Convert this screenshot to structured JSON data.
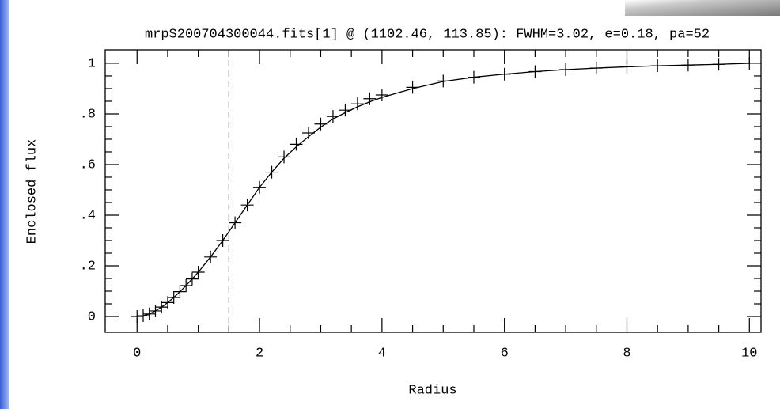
{
  "chart_data": {
    "type": "line",
    "title": "mrpS200704300044.fits[1] @ (1102.46, 113.85): FWHM=3.02, e=0.18, pa=52",
    "xlabel": "Radius",
    "ylabel": "Enclosed flux",
    "x": [
      0,
      0.1,
      0.2,
      0.3,
      0.4,
      0.5,
      0.6,
      0.7,
      0.8,
      0.9,
      1.0,
      1.2,
      1.4,
      1.6,
      1.8,
      2.0,
      2.2,
      2.4,
      2.6,
      2.8,
      3.0,
      3.2,
      3.4,
      3.6,
      3.8,
      4.0,
      4.5,
      5.0,
      5.5,
      6.0,
      6.5,
      7.0,
      7.5,
      8.0,
      8.5,
      9.0,
      9.5,
      10
    ],
    "series": [
      {
        "color": "#000000",
        "marker": "+",
        "values": [
          0,
          0.003,
          0.01,
          0.022,
          0.037,
          0.055,
          0.075,
          0.098,
          0.122,
          0.148,
          0.175,
          0.235,
          0.3,
          0.37,
          0.44,
          0.51,
          0.57,
          0.63,
          0.68,
          0.725,
          0.76,
          0.79,
          0.815,
          0.84,
          0.86,
          0.875,
          0.905,
          0.93,
          0.945,
          0.957,
          0.967,
          0.975,
          0.981,
          0.986,
          0.99,
          0.993,
          0.996,
          1.0
        ]
      },
      {
        "color": "#000000",
        "values": [
          0,
          0.003,
          0.01,
          0.022,
          0.037,
          0.055,
          0.075,
          0.098,
          0.122,
          0.148,
          0.175,
          0.235,
          0.3,
          0.37,
          0.44,
          0.51,
          0.57,
          0.625,
          0.67,
          0.71,
          0.748,
          0.78,
          0.805,
          0.828,
          0.848,
          0.865,
          0.9,
          0.928,
          0.945,
          0.957,
          0.967,
          0.975,
          0.981,
          0.986,
          0.99,
          0.993,
          0.996,
          1.0
        ]
      }
    ],
    "vline": 1.5,
    "xlim": [
      -0.52,
      10.19
    ],
    "ylim": [
      -0.0625,
      1.053
    ],
    "xticks": [
      0,
      2,
      4,
      6,
      8,
      10
    ],
    "yticks": [
      0,
      {
        "value": 0.2,
        "label": ".2"
      },
      {
        "value": 0.4,
        "label": ".4"
      },
      {
        "value": 0.6,
        "label": ".6"
      },
      {
        "value": 0.8,
        "label": ".8"
      },
      1
    ]
  }
}
